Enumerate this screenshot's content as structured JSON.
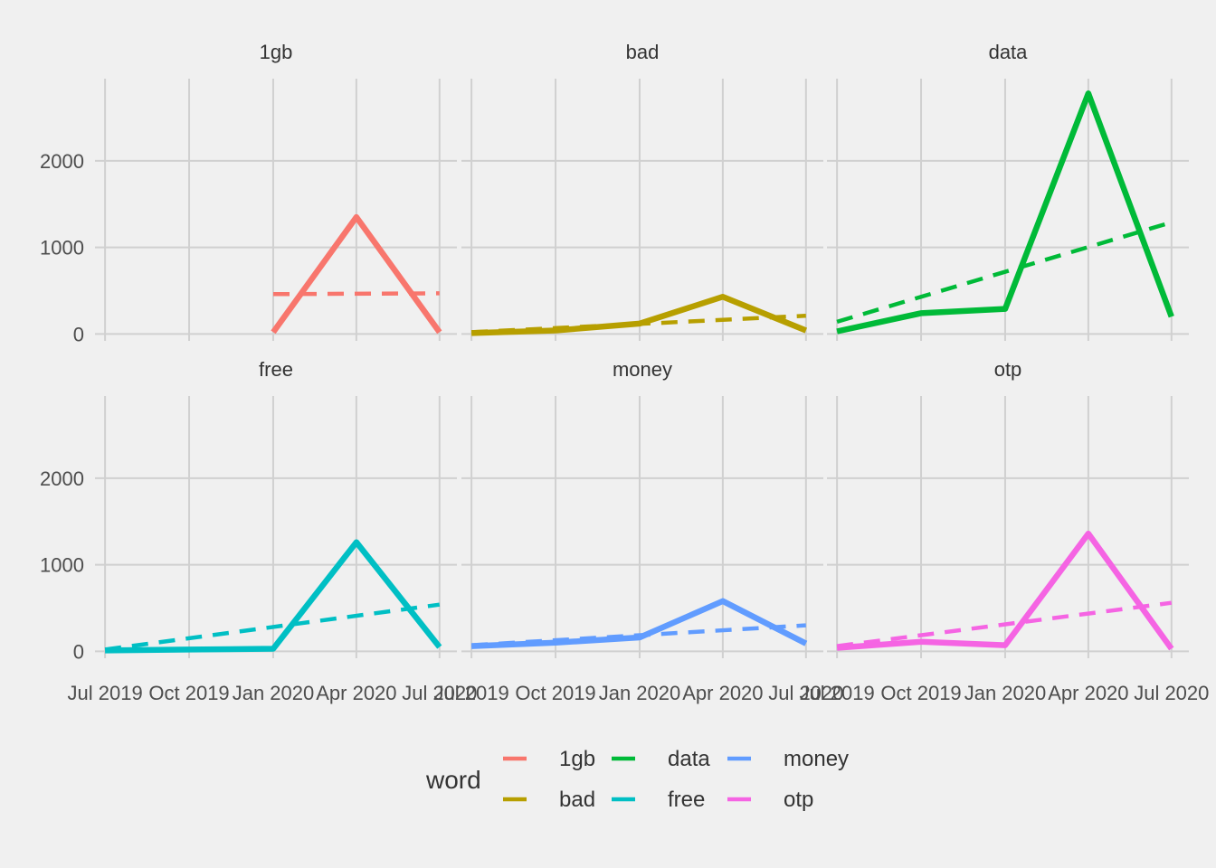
{
  "chart_data": {
    "type": "line",
    "facet_by": "word",
    "x_ticks": [
      "Jul 2019",
      "Oct 2019",
      "Jan 2020",
      "Apr 2020",
      "Jul 2020"
    ],
    "y_ticks": [
      0,
      1000,
      2000
    ],
    "ylim": [
      -80,
      2950
    ],
    "xlim": [
      "2019-06-20",
      "2020-07-20"
    ],
    "grid": true,
    "legend": {
      "title": "word",
      "position": "bottom",
      "entries": [
        "1gb",
        "bad",
        "data",
        "free",
        "money",
        "otp"
      ]
    },
    "facets": [
      {
        "name": "1gb",
        "color": "#F8766D",
        "actual": {
          "x": [
            "2020-01-01",
            "2020-04-01",
            "2020-07-01"
          ],
          "y": [
            20,
            1350,
            20
          ]
        },
        "trend": {
          "x": [
            "2020-01-01",
            "2020-07-01"
          ],
          "y": [
            460,
            470
          ]
        }
      },
      {
        "name": "bad",
        "color": "#B79F00",
        "actual": {
          "x": [
            "2019-07-01",
            "2019-10-01",
            "2020-01-01",
            "2020-04-01",
            "2020-07-01"
          ],
          "y": [
            10,
            40,
            120,
            430,
            40
          ]
        },
        "trend": {
          "x": [
            "2019-07-01",
            "2020-07-01"
          ],
          "y": [
            20,
            210
          ]
        }
      },
      {
        "name": "data",
        "color": "#00BA38",
        "actual": {
          "x": [
            "2019-07-01",
            "2019-10-01",
            "2020-01-01",
            "2020-04-01",
            "2020-07-01"
          ],
          "y": [
            30,
            240,
            290,
            2780,
            200
          ]
        },
        "trend": {
          "x": [
            "2019-07-01",
            "2020-07-01"
          ],
          "y": [
            140,
            1290
          ]
        }
      },
      {
        "name": "free",
        "color": "#00BFC4",
        "actual": {
          "x": [
            "2019-07-01",
            "2019-10-01",
            "2020-01-01",
            "2020-04-01",
            "2020-07-01"
          ],
          "y": [
            10,
            20,
            30,
            1260,
            50
          ]
        },
        "trend": {
          "x": [
            "2019-07-01",
            "2020-07-01"
          ],
          "y": [
            20,
            540
          ]
        }
      },
      {
        "name": "money",
        "color": "#619CFF",
        "actual": {
          "x": [
            "2019-07-01",
            "2019-10-01",
            "2020-01-01",
            "2020-04-01",
            "2020-07-01"
          ],
          "y": [
            60,
            100,
            160,
            580,
            90
          ]
        },
        "trend": {
          "x": [
            "2019-07-01",
            "2020-07-01"
          ],
          "y": [
            70,
            300
          ]
        }
      },
      {
        "name": "otp",
        "color": "#F564E3",
        "actual": {
          "x": [
            "2019-07-01",
            "2019-10-01",
            "2020-01-01",
            "2020-04-01",
            "2020-07-01"
          ],
          "y": [
            40,
            110,
            70,
            1360,
            30
          ]
        },
        "trend": {
          "x": [
            "2019-07-01",
            "2020-07-01"
          ],
          "y": [
            60,
            560
          ]
        }
      }
    ]
  }
}
